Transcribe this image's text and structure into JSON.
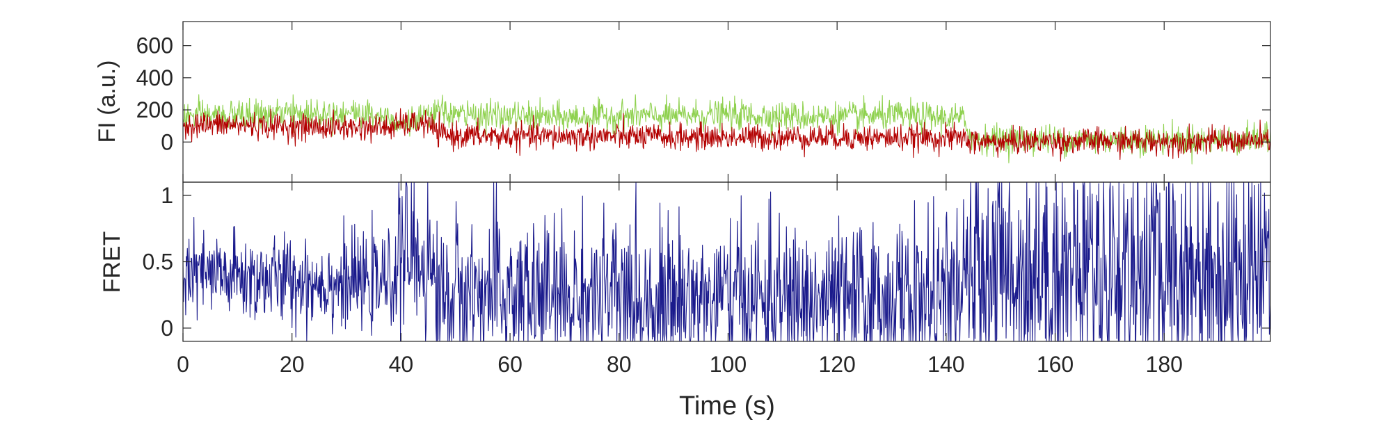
{
  "chart_data": [
    {
      "type": "line",
      "title": "",
      "xlabel": "",
      "ylabel": "FI (a.u.)",
      "xlim": [
        0,
        199.5
      ],
      "ylim": [
        -250,
        750
      ],
      "x_ticks": [
        0,
        20,
        40,
        60,
        80,
        100,
        120,
        140,
        160,
        180
      ],
      "y_ticks": [
        0,
        200,
        400,
        600
      ],
      "y_tick_labels": [
        "0",
        "200",
        "400",
        "600"
      ],
      "grid": false,
      "legend": "none",
      "sample_interval_s": 0.1,
      "series": [
        {
          "color": "#8fd14f",
          "x": [
            0,
            10,
            20,
            30,
            38,
            40,
            45,
            47,
            50,
            60,
            70,
            80,
            90,
            100,
            110,
            120,
            130,
            140,
            143,
            145,
            150,
            160,
            170,
            180,
            190,
            199.5
          ],
          "values": [
            160,
            165,
            175,
            185,
            160,
            115,
            150,
            190,
            170,
            160,
            150,
            165,
            160,
            170,
            160,
            155,
            165,
            150,
            145,
            15,
            20,
            15,
            15,
            15,
            15,
            15
          ],
          "noise_sd": 45
        },
        {
          "color": "#b30000",
          "x": [
            0,
            10,
            20,
            30,
            38,
            40,
            45,
            47,
            50,
            60,
            70,
            80,
            90,
            100,
            110,
            120,
            130,
            140,
            143,
            145,
            150,
            160,
            170,
            180,
            190,
            199.5
          ],
          "values": [
            110,
            105,
            95,
            90,
            90,
            110,
            115,
            45,
            40,
            35,
            35,
            35,
            30,
            30,
            30,
            30,
            25,
            25,
            25,
            0,
            0,
            5,
            5,
            5,
            5,
            5
          ],
          "noise_sd": 40
        }
      ]
    },
    {
      "type": "line",
      "title": "",
      "xlabel": "Time (s)",
      "ylabel": "FRET",
      "xlim": [
        0,
        199.5
      ],
      "ylim": [
        -0.1,
        1.1
      ],
      "x_ticks": [
        0,
        20,
        40,
        60,
        80,
        100,
        120,
        140,
        160,
        180
      ],
      "x_tick_labels": [
        "0",
        "20",
        "40",
        "60",
        "80",
        "100",
        "120",
        "140",
        "160",
        "180"
      ],
      "y_ticks": [
        0,
        0.5,
        1
      ],
      "y_tick_labels": [
        "0",
        "0.5",
        "1"
      ],
      "grid": false,
      "legend": "none",
      "sample_interval_s": 0.1,
      "series": [
        {
          "color": "#1a1a8c",
          "x": [
            0,
            10,
            20,
            30,
            38,
            40,
            45,
            47,
            50,
            60,
            70,
            80,
            90,
            100,
            110,
            120,
            130,
            140,
            143,
            145,
            150,
            160,
            170,
            180,
            190,
            199.5
          ],
          "values": [
            0.4,
            0.38,
            0.36,
            0.34,
            0.35,
            0.58,
            0.5,
            0.25,
            0.25,
            0.25,
            0.22,
            0.24,
            0.22,
            0.22,
            0.2,
            0.2,
            0.22,
            0.22,
            0.25,
            0.45,
            0.45,
            0.45,
            0.45,
            0.45,
            0.45,
            0.45
          ],
          "noise_sd": [
            0.17,
            0.17,
            0.17,
            0.17,
            0.17,
            0.3,
            0.3,
            0.25,
            0.3,
            0.32,
            0.3,
            0.3,
            0.3,
            0.3,
            0.3,
            0.28,
            0.3,
            0.3,
            0.3,
            0.45,
            0.45,
            0.45,
            0.45,
            0.45,
            0.45,
            0.45
          ]
        }
      ]
    }
  ]
}
